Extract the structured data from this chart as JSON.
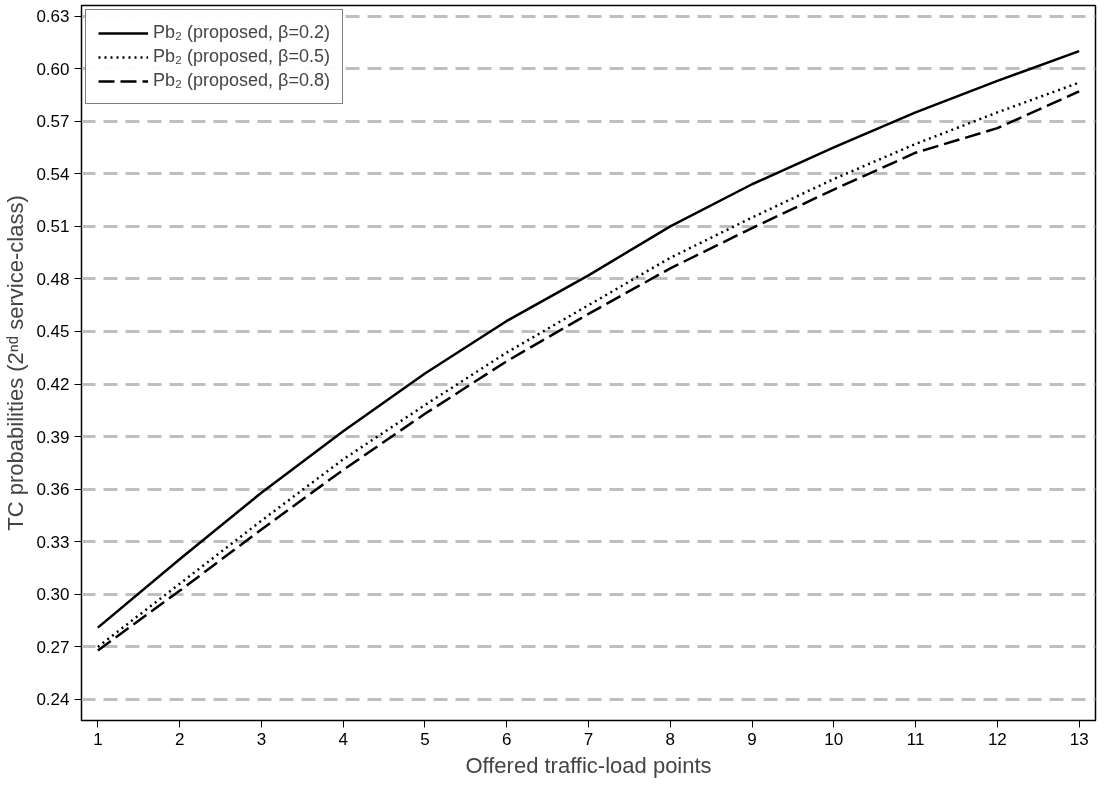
{
  "chart_data": {
    "type": "line",
    "xlabel": "Offered traffic-load points",
    "ylabel": "TC probabilities (2ⁿᵈ service-class)",
    "x": [
      1,
      2,
      3,
      4,
      5,
      6,
      7,
      8,
      9,
      10,
      11,
      12,
      13
    ],
    "series": [
      {
        "name": "Pb₂ (proposed, β=0.2)",
        "color": "#000000",
        "line_style": "solid",
        "values": [
          0.281,
          0.32,
          0.358,
          0.393,
          0.426,
          0.456,
          0.482,
          0.51,
          0.534,
          0.555,
          0.575,
          0.593,
          0.61
        ]
      },
      {
        "name": "Pb₂ (proposed, β=0.5)",
        "color": "#000000",
        "line_style": "dotted",
        "values": [
          0.27,
          0.306,
          0.342,
          0.377,
          0.408,
          0.438,
          0.465,
          0.492,
          0.515,
          0.537,
          0.557,
          0.575,
          0.592
        ]
      },
      {
        "name": "Pb₂ (proposed, β=0.8)",
        "color": "#000000",
        "line_style": "dashed",
        "values": [
          0.268,
          0.302,
          0.337,
          0.371,
          0.403,
          0.433,
          0.46,
          0.486,
          0.509,
          0.531,
          0.552,
          0.566,
          0.587
        ]
      }
    ],
    "xlim": [
      0.8,
      13.2
    ],
    "ylim": [
      0.228,
      0.636
    ],
    "xticks": [
      1,
      2,
      3,
      4,
      5,
      6,
      7,
      8,
      9,
      10,
      11,
      12,
      13
    ],
    "yticks": [
      0.24,
      0.27,
      {
        "value": 0.3,
        "label": "0.30"
      },
      0.33,
      0.36,
      0.39,
      0.42,
      0.45,
      0.48,
      0.51,
      0.54,
      0.57,
      {
        "value": 0.6,
        "label": "0.60"
      },
      0.63
    ],
    "grid": "y",
    "legend": "top left",
    "marker": "none"
  }
}
